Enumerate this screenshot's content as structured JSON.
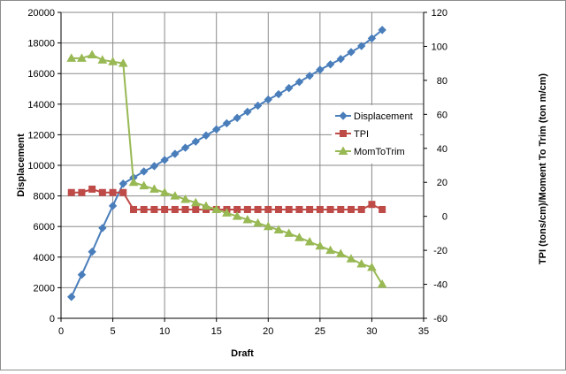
{
  "chart_data": {
    "type": "line",
    "title": "",
    "xlabel": "Draft",
    "ylabel": "Displacement",
    "y2label": "TPI (tons/cm)/Moment To Trim (ton m/cm)",
    "xlim": [
      0,
      35
    ],
    "ylim": [
      0,
      20000
    ],
    "y2lim": [
      -60,
      120
    ],
    "x_ticks": [
      "0",
      "5",
      "10",
      "15",
      "20",
      "25",
      "30",
      "35"
    ],
    "y_ticks": [
      "0",
      "2000",
      "4000",
      "6000",
      "8000",
      "10000",
      "12000",
      "14000",
      "16000",
      "18000",
      "20000"
    ],
    "y2_ticks": [
      "-60",
      "-40",
      "-20",
      "0",
      "20",
      "40",
      "60",
      "80",
      "100",
      "120"
    ],
    "grid": true,
    "legend_position": "right",
    "x": [
      1,
      2,
      3,
      4,
      5,
      6,
      7,
      8,
      9,
      10,
      11,
      12,
      13,
      14,
      15,
      16,
      17,
      18,
      19,
      20,
      21,
      22,
      23,
      24,
      25,
      26,
      27,
      28,
      29,
      30,
      31
    ],
    "series": [
      {
        "name": "Displacement",
        "axis": "left",
        "color": "#4a7ebb",
        "marker": "diamond",
        "values": [
          1400,
          2850,
          4350,
          5900,
          7350,
          8800,
          9200,
          9600,
          9950,
          10350,
          10750,
          11150,
          11550,
          11950,
          12350,
          12750,
          13100,
          13500,
          13900,
          14300,
          14650,
          15050,
          15450,
          15850,
          16250,
          16600,
          16950,
          17400,
          17800,
          18300,
          18850
        ]
      },
      {
        "name": "TPI",
        "axis": "right",
        "color": "#be4b48",
        "marker": "square",
        "values": [
          14,
          14,
          16,
          14,
          14,
          14,
          4,
          4,
          4,
          4,
          4,
          4,
          4,
          4,
          4,
          4,
          4,
          4,
          4,
          4,
          4,
          4,
          4,
          4,
          4,
          4,
          4,
          4,
          4,
          7,
          4
        ]
      },
      {
        "name": "MomToTrim",
        "axis": "right",
        "color": "#98b954",
        "marker": "triangle",
        "values": [
          93,
          93,
          95,
          92,
          91,
          90,
          20,
          18,
          16,
          14,
          12,
          10,
          8,
          6,
          4,
          2,
          0,
          -2,
          -4,
          -6,
          -8,
          -10,
          -12.5,
          -15,
          -17.5,
          -20,
          -22,
          -25,
          -28,
          -30,
          -40
        ]
      }
    ]
  }
}
